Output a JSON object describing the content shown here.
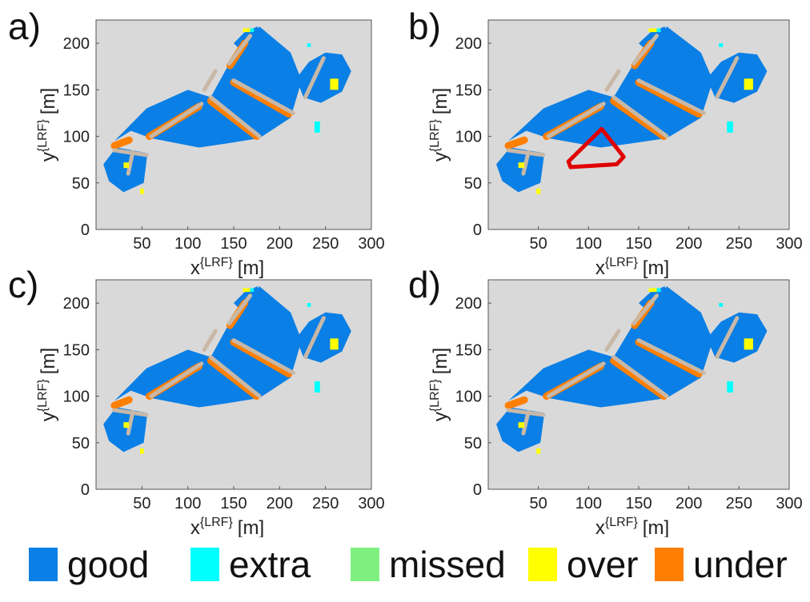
{
  "colors": {
    "background": "#d9d9d9",
    "good": "#0a7fe6",
    "extra": "#00ffff",
    "missed": "#7ff07f",
    "over": "#ffff00",
    "under": "#ff7f00",
    "highlight": "#e00000"
  },
  "chart_data": [
    {
      "type": "heatmap",
      "panel_label": "a)",
      "xlabel_main": "x",
      "xlabel_sup": "{LRF}",
      "xlabel_unit": "[m]",
      "ylabel_main": "y",
      "ylabel_sup": "{LRF}",
      "ylabel_unit": "[m]",
      "xlim": [
        0,
        300
      ],
      "ylim": [
        0,
        225
      ],
      "xticks": [
        50,
        100,
        150,
        200,
        250,
        300
      ],
      "yticks": [
        0,
        50,
        100,
        150,
        200
      ],
      "classes": [
        "good",
        "extra",
        "missed",
        "over",
        "under"
      ]
    },
    {
      "type": "heatmap",
      "panel_label": "b)",
      "xlabel_main": "x",
      "xlabel_sup": "{LRF}",
      "xlabel_unit": "[m]",
      "ylabel_main": "y",
      "ylabel_sup": "{LRF}",
      "ylabel_unit": "[m]",
      "xlim": [
        0,
        300
      ],
      "ylim": [
        0,
        225
      ],
      "xticks": [
        50,
        100,
        150,
        200,
        250,
        300
      ],
      "yticks": [
        0,
        50,
        100,
        150,
        200
      ],
      "classes": [
        "good",
        "extra",
        "missed",
        "over",
        "under"
      ],
      "highlight_region": [
        [
          80,
          73
        ],
        [
          113,
          108
        ],
        [
          135,
          78
        ],
        [
          128,
          70
        ],
        [
          82,
          67
        ]
      ]
    },
    {
      "type": "heatmap",
      "panel_label": "c)",
      "xlabel_main": "x",
      "xlabel_sup": "{LRF}",
      "xlabel_unit": "[m]",
      "ylabel_main": "y",
      "ylabel_sup": "{LRF}",
      "ylabel_unit": "[m]",
      "xlim": [
        0,
        300
      ],
      "ylim": [
        0,
        225
      ],
      "xticks": [
        50,
        100,
        150,
        200,
        250,
        300
      ],
      "yticks": [
        0,
        50,
        100,
        150,
        200
      ],
      "classes": [
        "good",
        "extra",
        "missed",
        "over",
        "under"
      ]
    },
    {
      "type": "heatmap",
      "panel_label": "d)",
      "xlabel_main": "x",
      "xlabel_sup": "{LRF}",
      "xlabel_unit": "[m]",
      "ylabel_main": "y",
      "ylabel_sup": "{LRF}",
      "ylabel_unit": "[m]",
      "xlim": [
        0,
        300
      ],
      "ylim": [
        0,
        225
      ],
      "xticks": [
        50,
        100,
        150,
        200,
        250,
        300
      ],
      "yticks": [
        0,
        50,
        100,
        150,
        200
      ],
      "classes": [
        "good",
        "extra",
        "missed",
        "over",
        "under"
      ]
    }
  ],
  "legend": [
    {
      "label": "good",
      "color": "#0a7fe6"
    },
    {
      "label": "extra",
      "color": "#00ffff"
    },
    {
      "label": "missed",
      "color": "#7ff07f"
    },
    {
      "label": "over",
      "color": "#ffff00"
    },
    {
      "label": "under",
      "color": "#ff7f00"
    }
  ]
}
